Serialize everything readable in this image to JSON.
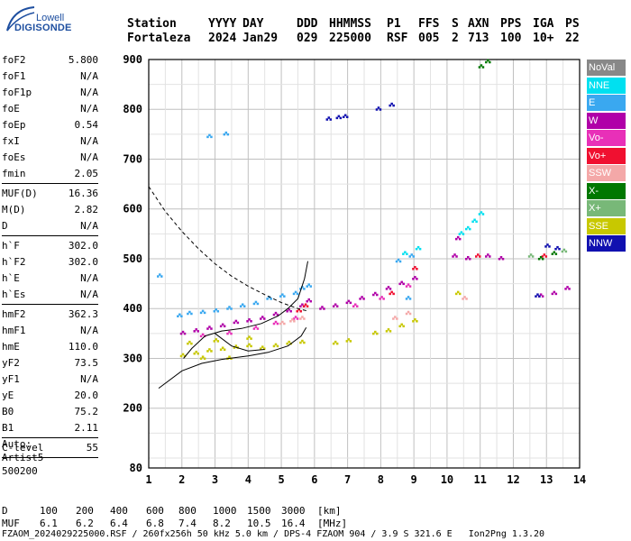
{
  "logo": {
    "line1": "Lowell",
    "line2": "DIGISONDE"
  },
  "header": {
    "row1": [
      "Station",
      "YYYY",
      "DAY",
      "DDD",
      "HHMMSS",
      "P1",
      "FFS",
      "S",
      "AXN",
      "PPS",
      "IGA",
      "PS"
    ],
    "row2": [
      "Fortaleza",
      "2024",
      "Jan29",
      "029",
      "225000",
      "RSF",
      "005",
      "2",
      "713",
      "100",
      "10+",
      "22"
    ]
  },
  "params": [
    {
      "k": "foF2",
      "v": "5.800"
    },
    {
      "k": "foF1",
      "v": "N/A"
    },
    {
      "k": "foF1p",
      "v": "N/A"
    },
    {
      "k": "foE",
      "v": "N/A"
    },
    {
      "k": "foEp",
      "v": "0.54"
    },
    {
      "k": "fxI",
      "v": "N/A"
    },
    {
      "k": "foEs",
      "v": "N/A"
    },
    {
      "k": "fmin",
      "v": "2.05"
    },
    {
      "k": "MUF(D)",
      "v": "16.36"
    },
    {
      "k": "M(D)",
      "v": "2.82"
    },
    {
      "k": "D",
      "v": "N/A"
    },
    {
      "k": "h`F",
      "v": "302.0"
    },
    {
      "k": "h`F2",
      "v": "302.0"
    },
    {
      "k": "h`E",
      "v": "N/A"
    },
    {
      "k": "h`Es",
      "v": "N/A"
    },
    {
      "k": "hmF2",
      "v": "362.3"
    },
    {
      "k": "hmF1",
      "v": "N/A"
    },
    {
      "k": "hmE",
      "v": "110.0"
    },
    {
      "k": "yF2",
      "v": "73.5"
    },
    {
      "k": "yF1",
      "v": "N/A"
    },
    {
      "k": "yE",
      "v": "20.0"
    },
    {
      "k": "B0",
      "v": "75.2"
    },
    {
      "k": "B1",
      "v": "2.11"
    },
    {
      "k": "C-level",
      "v": "55"
    }
  ],
  "auto": [
    "Auto:",
    "Artist5",
    "500200"
  ],
  "legend": [
    {
      "label": "NoVal",
      "color": "#888888"
    },
    {
      "label": "NNE",
      "color": "#00e0f0"
    },
    {
      "label": "E",
      "color": "#3aa8f0"
    },
    {
      "label": "W",
      "color": "#b000a8"
    },
    {
      "label": "Vo-",
      "color": "#e830b8"
    },
    {
      "label": "Vo+",
      "color": "#f01030"
    },
    {
      "label": "SSW",
      "color": "#f4a8a8"
    },
    {
      "label": "X-",
      "color": "#007800"
    },
    {
      "label": "X+",
      "color": "#78b878"
    },
    {
      "label": "SSE",
      "color": "#c8c800"
    },
    {
      "label": "NNW",
      "color": "#1010b0"
    }
  ],
  "footer": {
    "d_label": "D",
    "d_values": [
      "100",
      "200",
      "400",
      "600",
      "800",
      "1000",
      "1500",
      "3000",
      "[km]"
    ],
    "muf_label": "MUF",
    "muf_values": [
      "6.1",
      "6.2",
      "6.4",
      "6.8",
      "7.4",
      "8.2",
      "10.5",
      "16.4",
      "[MHz]"
    ],
    "file_line": "FZAOM_2024029225000.RSF / 260fx256h 50 kHz 5.0 km / DPS-4 FZAOM 904 / 3.9 S 321.6 E   Ion2Png 1.3.20"
  },
  "chart_data": {
    "type": "scatter",
    "x_range": [
      1,
      14
    ],
    "y_range": [
      80,
      900
    ],
    "x_ticks": [
      "1",
      "2",
      "3",
      "4",
      "5",
      "6",
      "7",
      "8",
      "9",
      "10",
      "11",
      "12",
      "13",
      "14"
    ],
    "y_ticks": [
      "80",
      "200",
      "300",
      "400",
      "500",
      "600",
      "700",
      "800",
      "900"
    ],
    "grid": true,
    "series": [
      {
        "name": "E",
        "color": "#3aa8f0",
        "points": [
          [
            1.9,
            385
          ],
          [
            2.2,
            390
          ],
          [
            2.6,
            392
          ],
          [
            3.0,
            395
          ],
          [
            3.4,
            400
          ],
          [
            3.8,
            405
          ],
          [
            4.2,
            410
          ],
          [
            4.6,
            420
          ],
          [
            5.0,
            425
          ],
          [
            5.4,
            430
          ],
          [
            5.6,
            440
          ],
          [
            5.8,
            445
          ],
          [
            8.5,
            495
          ],
          [
            8.9,
            505
          ],
          [
            1.3,
            465
          ],
          [
            2.8,
            745
          ],
          [
            3.3,
            750
          ],
          [
            8.8,
            420
          ]
        ]
      },
      {
        "name": "NNE",
        "color": "#00e0f0",
        "points": [
          [
            10.4,
            550
          ],
          [
            10.6,
            560
          ],
          [
            10.8,
            575
          ],
          [
            11.0,
            590
          ],
          [
            8.7,
            510
          ],
          [
            9.1,
            520
          ]
        ]
      },
      {
        "name": "W",
        "color": "#b000a8",
        "points": [
          [
            2.0,
            350
          ],
          [
            2.4,
            355
          ],
          [
            2.8,
            360
          ],
          [
            3.2,
            365
          ],
          [
            3.6,
            372
          ],
          [
            4.0,
            375
          ],
          [
            4.4,
            380
          ],
          [
            4.8,
            388
          ],
          [
            5.2,
            395
          ],
          [
            5.6,
            405
          ],
          [
            5.8,
            415
          ],
          [
            6.2,
            400
          ],
          [
            6.6,
            405
          ],
          [
            7.0,
            412
          ],
          [
            7.4,
            420
          ],
          [
            7.8,
            428
          ],
          [
            8.2,
            440
          ],
          [
            8.6,
            450
          ],
          [
            9.0,
            460
          ],
          [
            10.2,
            505
          ],
          [
            10.6,
            500
          ],
          [
            11.2,
            505
          ],
          [
            11.6,
            500
          ],
          [
            12.8,
            425
          ],
          [
            13.2,
            430
          ],
          [
            13.6,
            440
          ],
          [
            10.3,
            540
          ]
        ]
      },
      {
        "name": "Vo-",
        "color": "#e830b8",
        "points": [
          [
            2.6,
            345
          ],
          [
            3.4,
            350
          ],
          [
            4.2,
            360
          ],
          [
            4.8,
            370
          ],
          [
            5.4,
            380
          ],
          [
            7.2,
            405
          ],
          [
            8.0,
            420
          ],
          [
            8.8,
            445
          ]
        ]
      },
      {
        "name": "Vo+",
        "color": "#f01030",
        "points": [
          [
            5.5,
            395
          ],
          [
            5.7,
            405
          ],
          [
            8.3,
            430
          ],
          [
            9.0,
            480
          ],
          [
            10.9,
            505
          ],
          [
            12.9,
            505
          ]
        ]
      },
      {
        "name": "SSW",
        "color": "#f4a8a8",
        "points": [
          [
            5.0,
            370
          ],
          [
            5.3,
            375
          ],
          [
            5.6,
            380
          ],
          [
            8.4,
            380
          ],
          [
            8.8,
            390
          ],
          [
            10.5,
            420
          ]
        ]
      },
      {
        "name": "X-",
        "color": "#007800",
        "points": [
          [
            11.0,
            885
          ],
          [
            11.2,
            895
          ],
          [
            12.8,
            500
          ],
          [
            13.2,
            510
          ]
        ]
      },
      {
        "name": "X+",
        "color": "#78b878",
        "points": [
          [
            12.5,
            505
          ],
          [
            13.5,
            515
          ]
        ]
      },
      {
        "name": "SSE",
        "color": "#c8c800",
        "points": [
          [
            2.0,
            305
          ],
          [
            2.4,
            310
          ],
          [
            2.8,
            315
          ],
          [
            3.2,
            318
          ],
          [
            3.6,
            322
          ],
          [
            4.0,
            325
          ],
          [
            4.4,
            320
          ],
          [
            4.8,
            325
          ],
          [
            5.2,
            330
          ],
          [
            5.6,
            332
          ],
          [
            6.6,
            330
          ],
          [
            7.0,
            335
          ],
          [
            7.8,
            350
          ],
          [
            8.2,
            355
          ],
          [
            8.6,
            365
          ],
          [
            9.0,
            375
          ],
          [
            2.2,
            330
          ],
          [
            3.0,
            335
          ],
          [
            4.0,
            340
          ],
          [
            10.3,
            430
          ],
          [
            3.4,
            300
          ],
          [
            2.6,
            300
          ]
        ]
      },
      {
        "name": "NNW",
        "color": "#1010b0",
        "points": [
          [
            6.4,
            780
          ],
          [
            6.7,
            783
          ],
          [
            6.9,
            785
          ],
          [
            7.9,
            800
          ],
          [
            8.3,
            808
          ],
          [
            13.0,
            525
          ],
          [
            13.3,
            520
          ],
          [
            12.7,
            425
          ]
        ]
      }
    ],
    "profile_solid": [
      [
        1.3,
        240
      ],
      [
        2.0,
        275
      ],
      [
        2.6,
        290
      ],
      [
        3.2,
        298
      ],
      [
        4.0,
        305
      ],
      [
        4.6,
        312
      ],
      [
        5.2,
        325
      ],
      [
        5.6,
        345
      ],
      [
        5.75,
        362
      ]
    ],
    "profile_dashed": [
      [
        1.0,
        645
      ],
      [
        1.5,
        595
      ],
      [
        2.0,
        555
      ],
      [
        2.5,
        520
      ],
      [
        3.0,
        490
      ],
      [
        3.5,
        465
      ],
      [
        4.0,
        445
      ],
      [
        4.5,
        428
      ],
      [
        5.0,
        412
      ],
      [
        5.5,
        400
      ],
      [
        5.8,
        395
      ]
    ],
    "trace_f2": [
      [
        2.05,
        300
      ],
      [
        2.3,
        320
      ],
      [
        2.7,
        345
      ],
      [
        3.2,
        355
      ],
      [
        3.8,
        360
      ],
      [
        4.4,
        370
      ],
      [
        4.9,
        385
      ],
      [
        5.2,
        400
      ],
      [
        5.5,
        420
      ],
      [
        5.7,
        460
      ],
      [
        5.8,
        495
      ]
    ],
    "trace_low": [
      [
        3.0,
        350
      ],
      [
        3.5,
        325
      ],
      [
        4.0,
        315
      ],
      [
        4.5,
        318
      ]
    ]
  }
}
